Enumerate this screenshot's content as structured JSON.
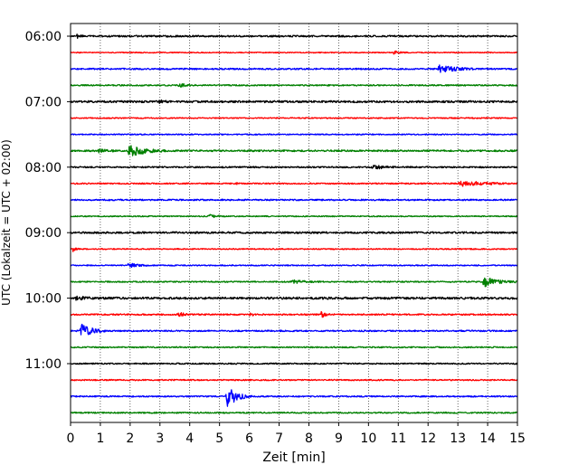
{
  "chart_data": {
    "type": "line",
    "title": "",
    "xlabel": "Zeit  [min]",
    "ylabel": "UTC (Lokalzeit = UTC + 02:00)",
    "xlim": [
      0,
      15
    ],
    "x_ticks": [
      0,
      1,
      2,
      3,
      4,
      5,
      6,
      7,
      8,
      9,
      10,
      11,
      12,
      13,
      14,
      15
    ],
    "x_tick_labels": [
      "0",
      "1",
      "2",
      "3",
      "4",
      "5",
      "6",
      "7",
      "8",
      "9",
      "10",
      "11",
      "12",
      "13",
      "14",
      "15"
    ],
    "grid": "vertical dotted",
    "legend": "none",
    "y_tick_labels": [
      "06:00",
      "07:00",
      "08:00",
      "09:00",
      "10:00",
      "11:00"
    ],
    "trace_interval_min": 15,
    "colors_cycle": [
      "#000000",
      "#ff0000",
      "#0000ff",
      "#008000"
    ],
    "traces": [
      {
        "start": "06:00",
        "color": "#000000",
        "noise": 0.9,
        "events": [
          {
            "t": 0.2,
            "amp": 3,
            "dur": 0.3
          }
        ]
      },
      {
        "start": "06:15",
        "color": "#ff0000",
        "noise": 0.5,
        "events": [
          {
            "t": 10.8,
            "amp": 2.5,
            "dur": 0.6
          }
        ]
      },
      {
        "start": "06:30",
        "color": "#0000ff",
        "noise": 0.8,
        "events": [
          {
            "t": 12.3,
            "amp": 6,
            "dur": 1.4
          }
        ]
      },
      {
        "start": "06:45",
        "color": "#008000",
        "noise": 0.7,
        "events": [
          {
            "t": 3.6,
            "amp": 3,
            "dur": 0.6
          }
        ]
      },
      {
        "start": "07:00",
        "color": "#000000",
        "noise": 1.1,
        "events": [
          {
            "t": 2.9,
            "amp": 2.5,
            "dur": 0.4
          }
        ]
      },
      {
        "start": "07:15",
        "color": "#ff0000",
        "noise": 0.6,
        "events": []
      },
      {
        "start": "07:30",
        "color": "#0000ff",
        "noise": 0.6,
        "events": []
      },
      {
        "start": "07:45",
        "color": "#008000",
        "noise": 0.9,
        "events": [
          {
            "t": 0.9,
            "amp": 2.5,
            "dur": 0.8
          },
          {
            "t": 1.9,
            "amp": 9,
            "dur": 1.3
          }
        ]
      },
      {
        "start": "08:00",
        "color": "#000000",
        "noise": 0.8,
        "events": [
          {
            "t": 10.1,
            "amp": 3,
            "dur": 0.9
          }
        ]
      },
      {
        "start": "08:15",
        "color": "#ff0000",
        "noise": 0.7,
        "events": [
          {
            "t": 5.5,
            "amp": 2,
            "dur": 0.2
          },
          {
            "t": 13.0,
            "amp": 4,
            "dur": 2.0
          }
        ]
      },
      {
        "start": "08:30",
        "color": "#0000ff",
        "noise": 0.8,
        "events": []
      },
      {
        "start": "08:45",
        "color": "#008000",
        "noise": 0.6,
        "events": [
          {
            "t": 4.6,
            "amp": 2.5,
            "dur": 0.6
          }
        ]
      },
      {
        "start": "09:00",
        "color": "#000000",
        "noise": 1.0,
        "events": []
      },
      {
        "start": "09:15",
        "color": "#ff0000",
        "noise": 0.6,
        "events": [
          {
            "t": 0.05,
            "amp": 4,
            "dur": 0.3
          }
        ]
      },
      {
        "start": "09:30",
        "color": "#0000ff",
        "noise": 0.6,
        "events": [
          {
            "t": 1.9,
            "amp": 4,
            "dur": 0.7
          }
        ]
      },
      {
        "start": "09:45",
        "color": "#008000",
        "noise": 0.7,
        "events": [
          {
            "t": 7.4,
            "amp": 2.5,
            "dur": 1.0
          },
          {
            "t": 13.8,
            "amp": 7,
            "dur": 1.2
          }
        ]
      },
      {
        "start": "10:00",
        "color": "#000000",
        "noise": 1.2,
        "events": [
          {
            "t": 0.1,
            "amp": 4,
            "dur": 0.6
          }
        ]
      },
      {
        "start": "10:15",
        "color": "#ff0000",
        "noise": 0.8,
        "events": [
          {
            "t": 3.6,
            "amp": 3,
            "dur": 0.5
          },
          {
            "t": 6.0,
            "amp": 2,
            "dur": 0.3
          },
          {
            "t": 8.4,
            "amp": 5,
            "dur": 0.3
          }
        ]
      },
      {
        "start": "10:30",
        "color": "#0000ff",
        "noise": 0.8,
        "events": [
          {
            "t": 0.3,
            "amp": 10,
            "dur": 1.0
          }
        ]
      },
      {
        "start": "10:45",
        "color": "#008000",
        "noise": 0.7,
        "events": []
      },
      {
        "start": "11:00",
        "color": "#000000",
        "noise": 0.7,
        "events": []
      },
      {
        "start": "11:15",
        "color": "#ff0000",
        "noise": 0.7,
        "events": []
      },
      {
        "start": "11:30",
        "color": "#0000ff",
        "noise": 0.7,
        "events": [
          {
            "t": 5.2,
            "amp": 16,
            "dur": 0.9
          }
        ]
      },
      {
        "start": "11:45",
        "color": "#008000",
        "noise": 0.7,
        "events": []
      }
    ]
  }
}
